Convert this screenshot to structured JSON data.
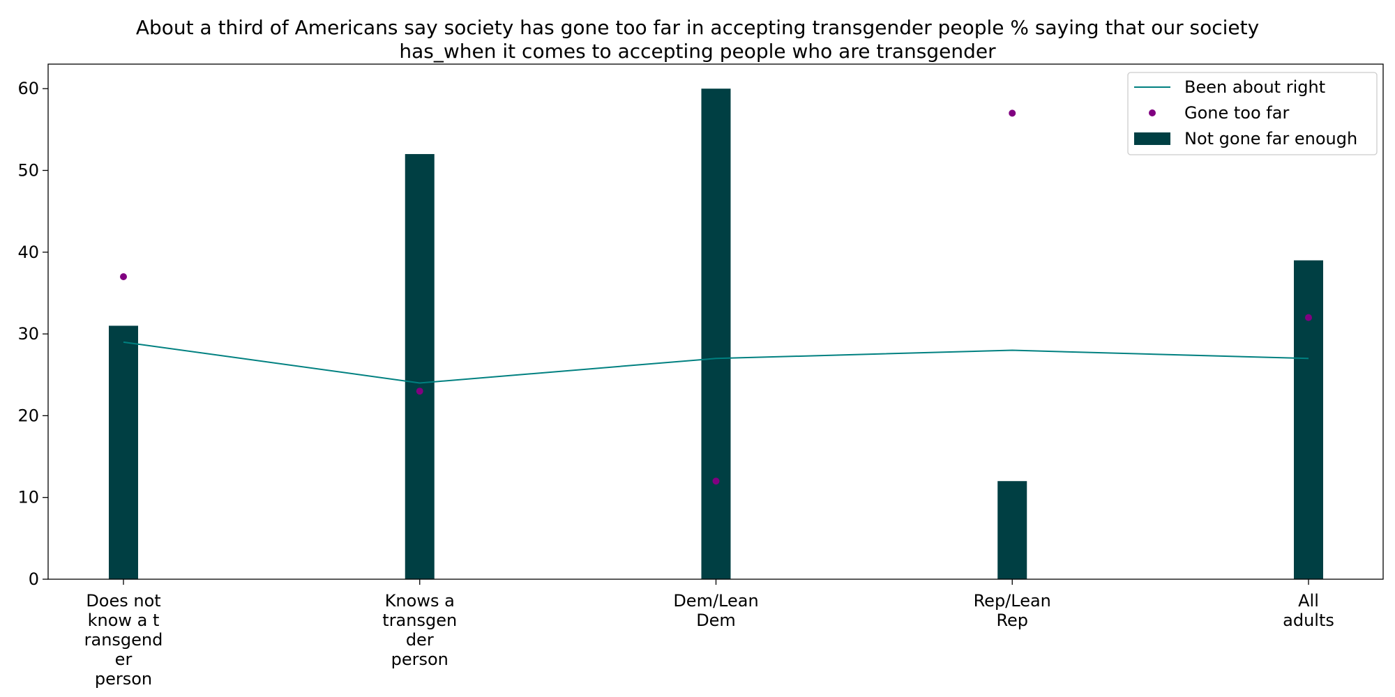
{
  "chart_data": {
    "type": "bar",
    "title_lines": [
      "About a third of Americans say society has gone too far in accepting transgender people % saying that our society",
      "has_when it comes to accepting people who are transgender"
    ],
    "categories": [
      [
        "Does not",
        "know a t",
        "ransgend",
        "er",
        "person"
      ],
      [
        "Knows a",
        "transgen",
        "der",
        "person"
      ],
      [
        "Dem/Lean",
        "Dem"
      ],
      [
        "Rep/Lean",
        "Rep"
      ],
      [
        "All",
        "adults"
      ]
    ],
    "series": [
      {
        "name": "Been about right",
        "kind": "line",
        "color": "#008080",
        "values": [
          29,
          24,
          27,
          28,
          27
        ]
      },
      {
        "name": "Gone too far",
        "kind": "scatter",
        "color": "#800080",
        "values": [
          37,
          23,
          12,
          57,
          32
        ]
      },
      {
        "name": "Not gone far enough",
        "kind": "bar",
        "color": "#003f43",
        "values": [
          31,
          52,
          60,
          12,
          39
        ]
      }
    ],
    "ylim": [
      0,
      63
    ],
    "yticks": [
      0,
      10,
      20,
      30,
      40,
      50,
      60
    ],
    "legend_position": "top-right",
    "grid": false
  }
}
